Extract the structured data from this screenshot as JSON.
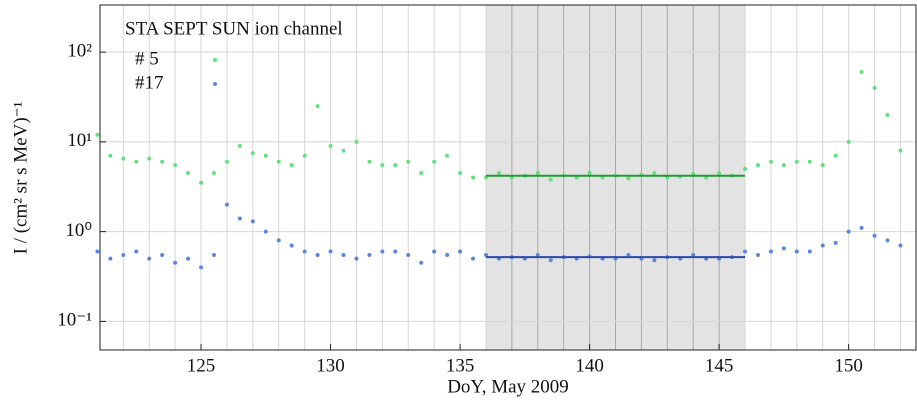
{
  "chart_data": {
    "type": "scatter",
    "legend_title": "STA SEPT SUN ion channel",
    "xlabel": "DoY, May 2009",
    "ylabel": "I / (cm² sr s MeV)⁻¹",
    "log_y": true,
    "grid": true,
    "legend": "upper left",
    "xlim": [
      121.1,
      152.6
    ],
    "ylim": [
      0.048,
      335
    ],
    "xticks": [
      125,
      130,
      135,
      140,
      145,
      150
    ],
    "xgrid": [
      122,
      123,
      124,
      125,
      126,
      127,
      128,
      129,
      130,
      131,
      132,
      133,
      134,
      135,
      136,
      137,
      138,
      139,
      140,
      141,
      142,
      143,
      144,
      145,
      146,
      147,
      148,
      149,
      150,
      151,
      152
    ],
    "yticks": [
      {
        "value": 0.1,
        "label": "10⁻¹"
      },
      {
        "value": 1,
        "label": "10⁰"
      },
      {
        "value": 10,
        "label": "10¹"
      },
      {
        "value": 100,
        "label": "10²"
      }
    ],
    "span": [
      136,
      146
    ],
    "span_color": "#e3e3e3",
    "x": [
      121,
      121.5,
      122,
      122.5,
      123,
      123.5,
      124,
      124.5,
      125,
      125.5,
      126,
      126.5,
      127,
      127.5,
      128,
      128.5,
      129,
      129.5,
      130,
      130.5,
      131,
      131.5,
      132,
      132.5,
      133,
      133.5,
      134,
      134.5,
      135,
      135.5,
      136,
      136.5,
      137,
      137.5,
      138,
      138.5,
      139,
      139.5,
      140,
      140.5,
      141,
      141.5,
      142,
      142.5,
      143,
      143.5,
      144,
      144.5,
      145,
      145.5,
      146,
      146.5,
      147,
      147.5,
      148,
      148.5,
      149,
      149.5,
      150,
      150.5,
      151,
      151.5,
      152
    ],
    "series": [
      {
        "name": "# 5",
        "color": "#62e27c",
        "values": [
          12,
          7,
          6.5,
          6,
          6.5,
          6,
          5.5,
          4.5,
          3.5,
          4.5,
          6,
          9,
          7.5,
          7,
          6,
          5.5,
          7,
          25,
          9,
          8,
          10,
          6,
          5.5,
          5.5,
          6,
          4.5,
          6,
          7,
          4.5,
          4,
          4,
          4.5,
          4,
          4.2,
          4.5,
          3.8,
          4.2,
          4,
          4.5,
          4,
          4.2,
          3.9,
          4.3,
          4.5,
          4,
          4.1,
          4.4,
          4,
          4.5,
          4.2,
          5,
          5.5,
          6,
          5.5,
          6,
          6,
          5.5,
          7,
          10,
          60,
          40,
          20,
          8
        ]
      },
      {
        "name": "#17",
        "color": "#5b86d9",
        "values": [
          0.6,
          0.5,
          0.55,
          0.6,
          0.5,
          0.55,
          0.45,
          0.5,
          0.4,
          0.55,
          2,
          1.4,
          1.3,
          1.0,
          0.8,
          0.7,
          0.6,
          0.55,
          0.6,
          0.55,
          0.5,
          0.55,
          0.6,
          0.6,
          0.55,
          0.45,
          0.6,
          0.55,
          0.6,
          0.5,
          0.55,
          0.5,
          0.52,
          0.5,
          0.55,
          0.48,
          0.52,
          0.5,
          0.53,
          0.5,
          0.5,
          0.55,
          0.5,
          0.48,
          0.52,
          0.5,
          0.55,
          0.5,
          0.5,
          0.52,
          0.6,
          0.55,
          0.6,
          0.65,
          0.6,
          0.6,
          0.7,
          0.75,
          1.0,
          1.1,
          0.9,
          0.8,
          0.7
        ]
      }
    ],
    "fits": [
      {
        "x": [
          136,
          146
        ],
        "value": 4.2,
        "color": "#1f9a32"
      },
      {
        "x": [
          136,
          146
        ],
        "value": 0.52,
        "color": "#2b4aa8"
      }
    ]
  }
}
